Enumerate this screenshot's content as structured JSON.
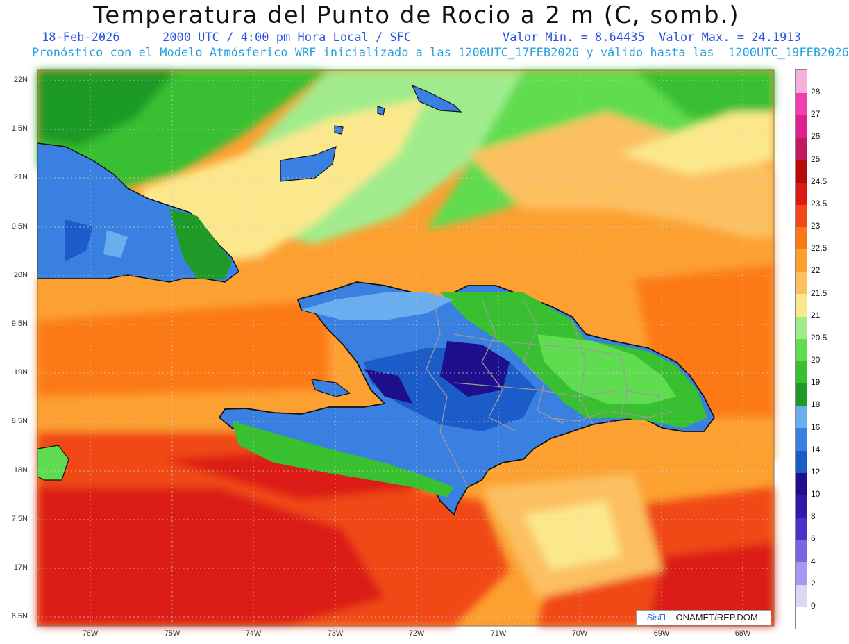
{
  "title": "Temperatura del Punto de Rocio a 2 m (C, somb.)",
  "subtitle_left": "18-Feb-2026      2000 UTC / 4:00 pm Hora Local / SFC",
  "subtitle_right": "Valor Min. = 8.64435  Valor Max. = 24.1913",
  "subtitle2": "Pronóstico con el Modelo Atmósferico WRF inicializado a las 1200UTC_17FEB2026 y válido hasta las  1200UTC_19FEB2026",
  "lat_labels": [
    "22N",
    "1.5N",
    "21N",
    "0.5N",
    "20N",
    "9.5N",
    "19N",
    "8.5N",
    "18N",
    "7.5N",
    "17N",
    "6.5N"
  ],
  "lon_labels": [
    "76W",
    "75W",
    "74W",
    "73W",
    "72W",
    "71W",
    "70W",
    "69W",
    "68W"
  ],
  "colorbar": {
    "labels": [
      "0",
      "2",
      "4",
      "6",
      "8",
      "10",
      "12",
      "14",
      "16",
      "18",
      "19",
      "20",
      "20.5",
      "21",
      "21.5",
      "22",
      "22.5",
      "23",
      "23.5",
      "24.5",
      "25",
      "26",
      "27",
      "28"
    ],
    "colors": [
      "#ffffff",
      "#d9d9f5",
      "#a896f0",
      "#7a66e0",
      "#4a32c8",
      "#2e1aa8",
      "#1e0f8c",
      "#1c5cc8",
      "#3a80e0",
      "#6aaef0",
      "#1e9a28",
      "#38c030",
      "#60dc50",
      "#a0ec8c",
      "#fce88c",
      "#fcc060",
      "#fca030",
      "#fc7a14",
      "#f04818",
      "#dc1a14",
      "#b80a0a",
      "#c01a60",
      "#e02090",
      "#f040b0",
      "#f8b0dc"
    ]
  },
  "credit": {
    "brand": "SisΠ",
    "text": " – ONAMET/REP.DOM."
  }
}
